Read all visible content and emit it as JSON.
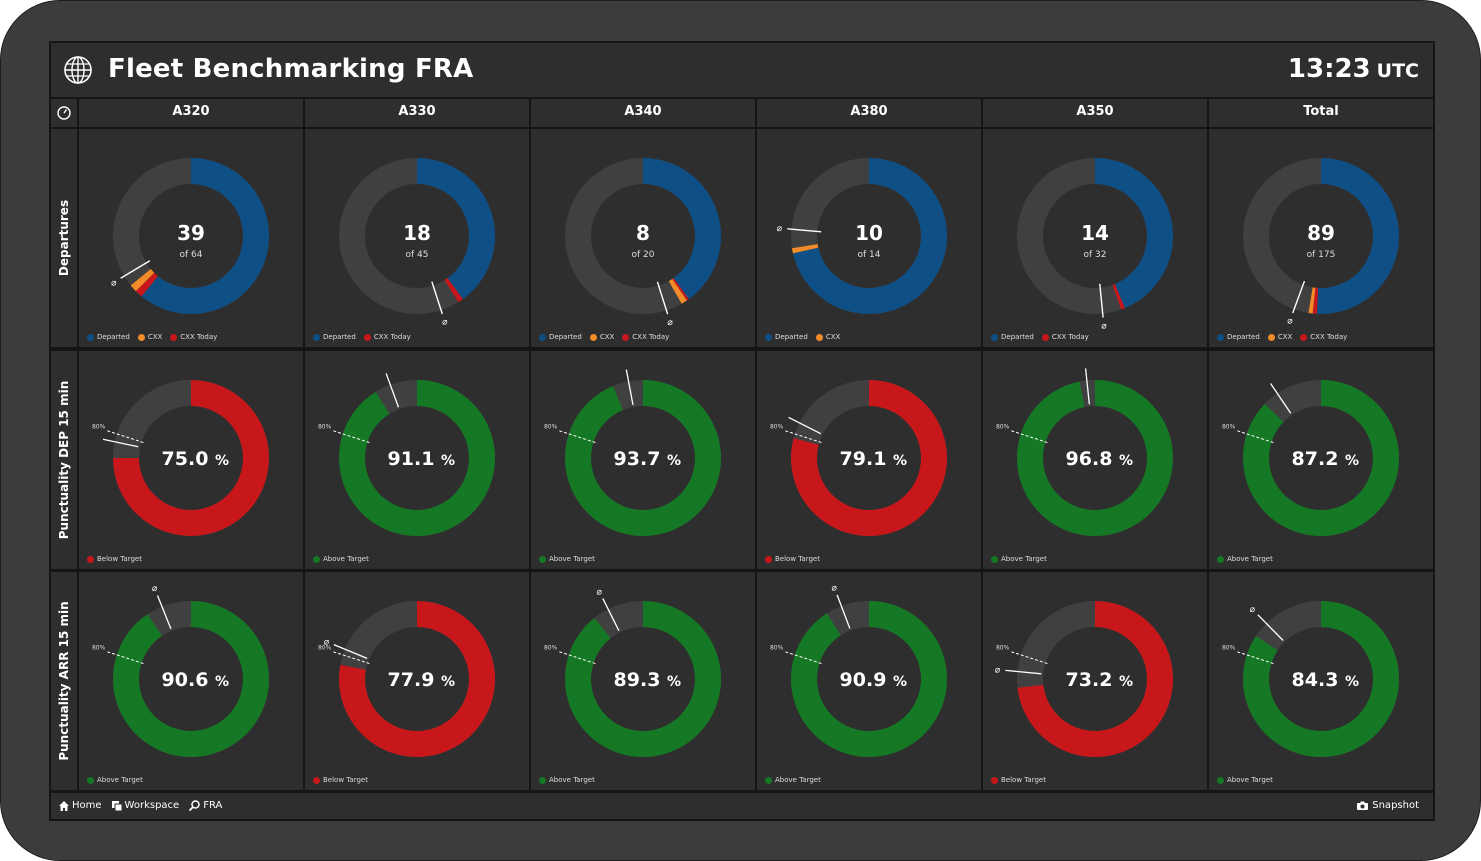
{
  "header": {
    "title": "Fleet Benchmarking FRA",
    "time": "13:23",
    "tz": "UTC"
  },
  "columns": [
    "A320",
    "A330",
    "A340",
    "A380",
    "A350",
    "Total"
  ],
  "rows": [
    "Departures",
    "Punctuality DEP 15 min",
    "Punctuality ARR 15 min"
  ],
  "colors": {
    "departed": "#0e4f86",
    "cxx": "#f28c28",
    "cxx_today": "#c8171b",
    "above": "#157824",
    "below": "#c8171b",
    "rest": "#404040"
  },
  "departures": [
    {
      "value": "39",
      "sub": "of 64",
      "departed": 39,
      "cxx": 1,
      "cxx_today": 1,
      "total": 64,
      "avg_marker": "⌀",
      "legend": [
        "Departed",
        "CXX",
        "CXX Today"
      ]
    },
    {
      "value": "18",
      "sub": "of 45",
      "departed": 18,
      "cxx": 0,
      "cxx_today": 0.5,
      "total": 45,
      "avg_marker": "⌀",
      "legend": [
        "Departed",
        "CXX Today"
      ]
    },
    {
      "value": "8",
      "sub": "of 20",
      "departed": 8,
      "cxx": 0.25,
      "cxx_today": 0.1,
      "total": 20,
      "avg_marker": "⌀",
      "legend": [
        "Departed",
        "CXX",
        "CXX Today"
      ]
    },
    {
      "value": "10",
      "sub": "of 14",
      "departed": 10,
      "cxx": 0.15,
      "cxx_today": 0,
      "total": 14,
      "avg_marker": "⌀",
      "legend": [
        "Departed",
        "CXX"
      ]
    },
    {
      "value": "14",
      "sub": "of 32",
      "departed": 14,
      "cxx": 0,
      "cxx_today": 0.25,
      "total": 32,
      "avg_marker": "⌀",
      "legend": [
        "Departed",
        "CXX Today"
      ]
    },
    {
      "value": "89",
      "sub": "of 175",
      "departed": 89,
      "cxx": 1.5,
      "cxx_today": 1.5,
      "total": 175,
      "avg_marker": "⌀",
      "legend": [
        "Departed",
        "CXX",
        "CXX Today"
      ]
    }
  ],
  "punct_dep": [
    {
      "value": "75.0",
      "pct": 75.0,
      "above": false,
      "legend": "Below Target",
      "target_label": "80%"
    },
    {
      "value": "91.1",
      "pct": 91.1,
      "above": true,
      "legend": "Above Target",
      "target_label": "80%"
    },
    {
      "value": "93.7",
      "pct": 93.7,
      "above": true,
      "legend": "Above Target",
      "target_label": "80%"
    },
    {
      "value": "79.1",
      "pct": 79.1,
      "above": false,
      "legend": "Below Target",
      "target_label": "80%"
    },
    {
      "value": "96.8",
      "pct": 96.8,
      "above": true,
      "legend": "Above Target",
      "target_label": "80%"
    },
    {
      "value": "87.2",
      "pct": 87.2,
      "above": true,
      "legend": "Above Target",
      "target_label": "80%"
    }
  ],
  "punct_arr": [
    {
      "value": "90.6",
      "pct": 90.6,
      "above": true,
      "legend": "Above Target",
      "target_label": "80%",
      "avg_marker": "⌀"
    },
    {
      "value": "77.9",
      "pct": 77.9,
      "above": false,
      "legend": "Below Target",
      "target_label": "80%",
      "avg_marker": "⌀"
    },
    {
      "value": "89.3",
      "pct": 89.3,
      "above": true,
      "legend": "Above Target",
      "target_label": "80%",
      "avg_marker": "⌀"
    },
    {
      "value": "90.9",
      "pct": 90.9,
      "above": true,
      "legend": "Above Target",
      "target_label": "80%",
      "avg_marker": "⌀"
    },
    {
      "value": "73.2",
      "pct": 73.2,
      "above": false,
      "legend": "Below Target",
      "target_label": "80%",
      "avg_marker": "⌀"
    },
    {
      "value": "84.3",
      "pct": 84.3,
      "above": true,
      "legend": "Above Target",
      "target_label": "80%",
      "avg_marker": "⌀"
    }
  ],
  "footer": {
    "home": "Home",
    "workspace": "Workspace",
    "fra": "FRA",
    "snapshot": "Snapshot"
  }
}
